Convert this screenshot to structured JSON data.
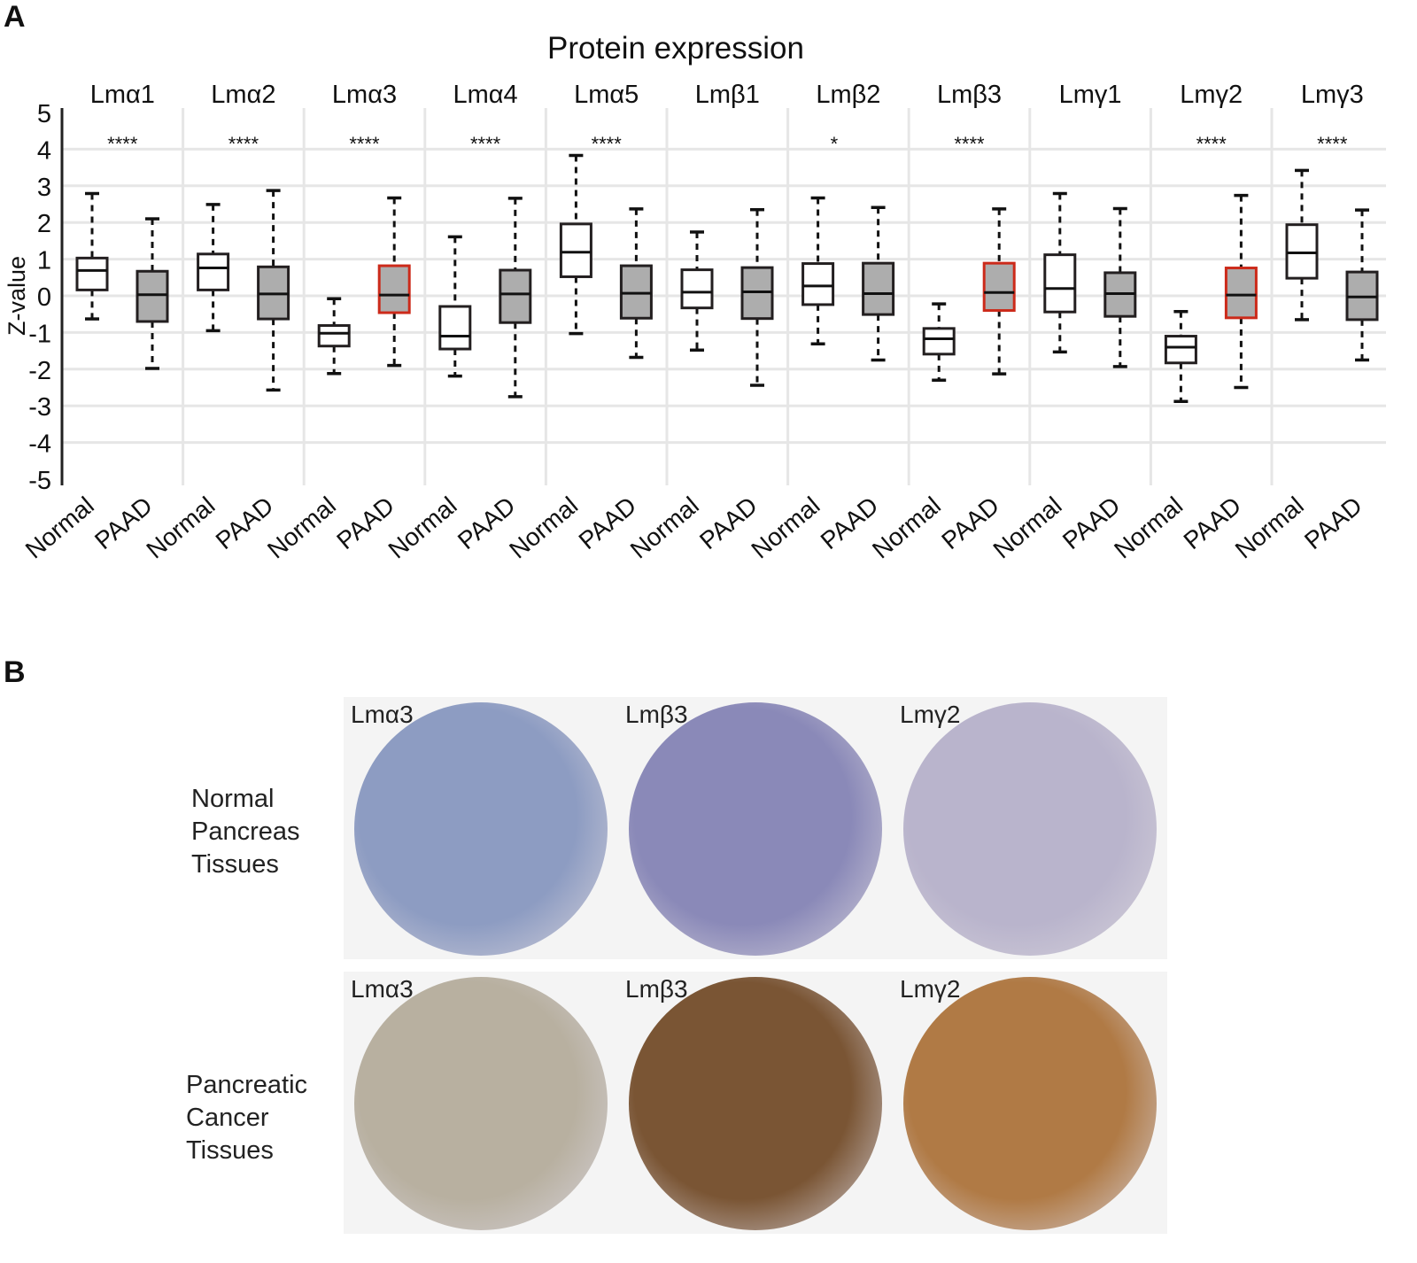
{
  "panel_a_letter": "A",
  "panel_b_letter": "B",
  "chart_data": {
    "type": "box",
    "title": "Protein expression",
    "ylabel": "Z-value",
    "ylim": [
      -5,
      5
    ],
    "yticks": [
      "5",
      "4",
      "3",
      "2",
      "1",
      "0",
      "-1",
      "-2",
      "-3",
      "-4",
      "-5"
    ],
    "grid": true,
    "groups": [
      {
        "name": "Lmα1",
        "sig": "****",
        "highlight": false,
        "normal": [
          -0.63,
          0.16,
          0.69,
          1.03,
          2.79
        ],
        "paad": [
          -1.98,
          -0.7,
          0.03,
          0.67,
          2.1
        ]
      },
      {
        "name": "Lmα2",
        "sig": "****",
        "highlight": false,
        "normal": [
          -0.95,
          0.16,
          0.76,
          1.14,
          2.49
        ],
        "paad": [
          -2.57,
          -0.63,
          0.05,
          0.79,
          2.87
        ]
      },
      {
        "name": "Lmα3",
        "sig": "****",
        "highlight": true,
        "normal": [
          -2.12,
          -1.37,
          -1.02,
          -0.81,
          -0.08
        ],
        "paad": [
          -1.9,
          -0.46,
          0.02,
          0.82,
          2.67
        ]
      },
      {
        "name": "Lmα4",
        "sig": "****",
        "highlight": false,
        "normal": [
          -2.19,
          -1.45,
          -1.1,
          -0.29,
          1.61
        ],
        "paad": [
          -2.75,
          -0.73,
          0.05,
          0.7,
          2.66
        ]
      },
      {
        "name": "Lmα5",
        "sig": "****",
        "highlight": false,
        "normal": [
          -1.03,
          0.52,
          1.19,
          1.96,
          3.83
        ],
        "paad": [
          -1.68,
          -0.61,
          0.07,
          0.82,
          2.37
        ]
      },
      {
        "name": "Lmβ1",
        "sig": "",
        "highlight": false,
        "normal": [
          -1.48,
          -0.33,
          0.1,
          0.71,
          1.74
        ],
        "paad": [
          -2.44,
          -0.62,
          0.11,
          0.77,
          2.35
        ]
      },
      {
        "name": "Lmβ2",
        "sig": "*",
        "highlight": false,
        "normal": [
          -1.31,
          -0.24,
          0.27,
          0.88,
          2.67
        ],
        "paad": [
          -1.75,
          -0.51,
          0.06,
          0.89,
          2.41
        ]
      },
      {
        "name": "Lmβ3",
        "sig": "****",
        "highlight": true,
        "normal": [
          -2.3,
          -1.59,
          -1.17,
          -0.89,
          -0.22
        ],
        "paad": [
          -2.13,
          -0.4,
          0.09,
          0.89,
          2.37
        ]
      },
      {
        "name": "Lmγ1",
        "sig": "",
        "highlight": false,
        "normal": [
          -1.53,
          -0.44,
          0.2,
          1.12,
          2.79
        ],
        "paad": [
          -1.93,
          -0.56,
          0.06,
          0.63,
          2.38
        ]
      },
      {
        "name": "Lmγ2",
        "sig": "****",
        "highlight": true,
        "normal": [
          -2.88,
          -1.83,
          -1.4,
          -1.1,
          -0.43
        ],
        "paad": [
          -2.5,
          -0.6,
          0.02,
          0.76,
          2.74
        ]
      },
      {
        "name": "Lmγ3",
        "sig": "****",
        "highlight": false,
        "normal": [
          -0.65,
          0.48,
          1.17,
          1.94,
          3.42
        ],
        "paad": [
          -1.75,
          -0.65,
          -0.03,
          0.65,
          2.34
        ]
      }
    ],
    "box_order": "min, q1, median, q3, max",
    "category_labels": [
      "Normal",
      "PAAD"
    ],
    "colors": {
      "normal_fill": "#ffffff",
      "paad_fill": "#adadad",
      "highlight_edge": "#cc2a1a",
      "edge": "#231f20",
      "grid": "#e6e6e6"
    }
  },
  "panel_b": {
    "rows": [
      {
        "label_lines": [
          "Normal",
          "Pancreas",
          "Tissues"
        ],
        "images": [
          {
            "label": "Lmα3",
            "stain": "#8d9cc2"
          },
          {
            "label": "Lmβ3",
            "stain": "#8a89b8"
          },
          {
            "label": "Lmγ2",
            "stain": "#b9b4cc"
          }
        ]
      },
      {
        "label_lines": [
          "Pancreatic",
          "Cancer",
          "Tissues"
        ],
        "images": [
          {
            "label": "Lmα3",
            "stain": "#b8b0a0"
          },
          {
            "label": "Lmβ3",
            "stain": "#7a5534"
          },
          {
            "label": "Lmγ2",
            "stain": "#b07a45"
          }
        ]
      }
    ]
  }
}
